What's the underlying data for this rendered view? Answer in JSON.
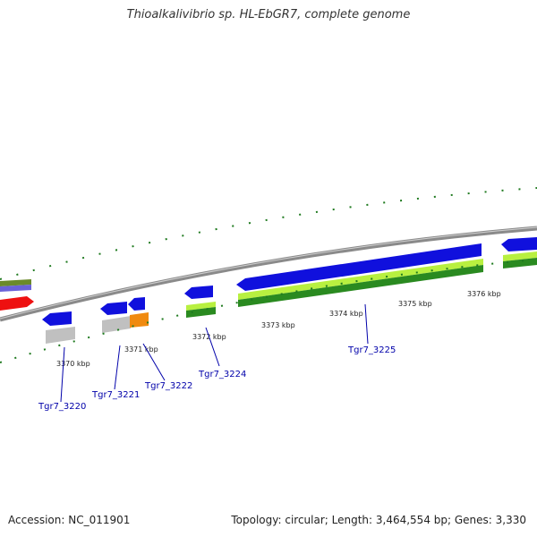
{
  "title": "Thioalkalivibrio sp. HL-EbGR7, complete genome",
  "footer": {
    "accession": "Accession: NC_011901",
    "summary": "Topology: circular; Length: 3,464,554 bp; Genes: 3,330"
  },
  "colors": {
    "backbone": "#8a8a8a",
    "forward_cds": "#1010dd",
    "reverse_cds": "#c8c8c8",
    "other": "#f08a10",
    "rna": "#ee1010",
    "gc_light": "#b8f040",
    "gc_dark": "#2a8a20",
    "dots": "#1f7a1f",
    "gene_label": "#0000aa"
  },
  "scale_labels": [
    "3370 kbp",
    "3371 kbp",
    "3372 kbp",
    "3373 kbp",
    "3374 kbp",
    "3375 kbp",
    "3376 kbp"
  ],
  "gene_labels": [
    "Tgr7_3220",
    "Tgr7_3221",
    "Tgr7_3222",
    "Tgr7_3224",
    "Tgr7_3225"
  ]
}
